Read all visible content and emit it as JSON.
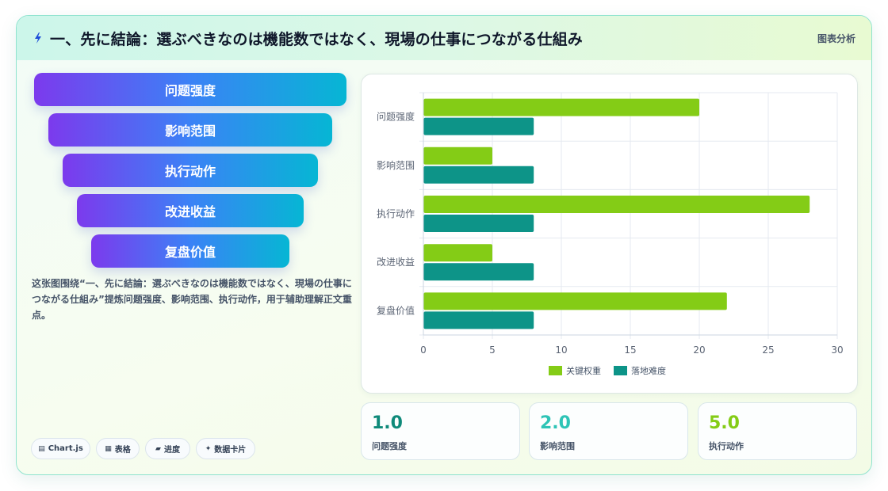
{
  "header": {
    "title": "一、先に結論：選ぶべきなのは機能数ではなく、現場の仕事につながる仕組み",
    "tag": "图表分析",
    "icon": "lightning-icon"
  },
  "funnel": {
    "items": [
      "问题强度",
      "影响范围",
      "执行动作",
      "改进收益",
      "复盘价值"
    ]
  },
  "summary": "这张图围绕“一、先に結論：選ぶべきなのは機能数ではなく、現場の仕事につながる仕組み”提炼问题强度、影响范围、执行动作，用于辅助理解正文重点。",
  "chips": [
    {
      "icon": "▤",
      "label": "Chart.js"
    },
    {
      "icon": "▦",
      "label": "表格"
    },
    {
      "icon": "▰",
      "label": "进度"
    },
    {
      "icon": "✦",
      "label": "数据卡片"
    }
  ],
  "chart_data": {
    "type": "bar",
    "orientation": "horizontal",
    "categories": [
      "问题强度",
      "影响范围",
      "执行动作",
      "改进收益",
      "复盘价值"
    ],
    "series": [
      {
        "name": "关键权重",
        "values": [
          20,
          5,
          28,
          5,
          22
        ],
        "color": "#84cc16"
      },
      {
        "name": "落地难度",
        "values": [
          8,
          8,
          8,
          8,
          8
        ],
        "color": "#0d9488"
      }
    ],
    "xlim": [
      0,
      30
    ],
    "xticks": [
      0,
      5,
      10,
      15,
      20,
      25,
      30
    ],
    "grid": true,
    "legend": "bottom"
  },
  "stats": [
    {
      "value": "1.0",
      "label": "问题强度",
      "color": "#0f8a7a"
    },
    {
      "value": "2.0",
      "label": "影响范围",
      "color": "#2ec4b6"
    },
    {
      "value": "5.0",
      "label": "执行动作",
      "color": "#84cc16"
    }
  ],
  "colors": {
    "accent_teal": "#0d9488",
    "accent_lime": "#84cc16",
    "funnel_start": "#7c3aed",
    "funnel_end": "#06b6d4"
  }
}
